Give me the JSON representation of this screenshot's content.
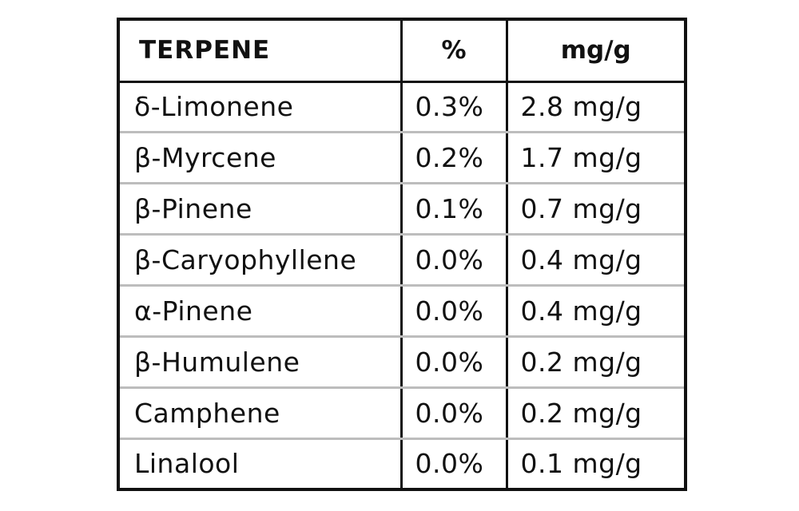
{
  "table": {
    "headers": {
      "terpene": "TERPENE",
      "percent": "%",
      "mgg": "mg/g"
    },
    "rows": [
      {
        "name": "δ-Limonene",
        "percent": "0.3%",
        "mgg": "2.8 mg/g"
      },
      {
        "name": "β-Myrcene",
        "percent": "0.2%",
        "mgg": "1.7 mg/g"
      },
      {
        "name": "β-Pinene",
        "percent": "0.1%",
        "mgg": "0.7 mg/g"
      },
      {
        "name": "β-Caryophyllene",
        "percent": "0.0%",
        "mgg": "0.4 mg/g"
      },
      {
        "name": "α-Pinene",
        "percent": "0.0%",
        "mgg": "0.4 mg/g"
      },
      {
        "name": "β-Humulene",
        "percent": "0.0%",
        "mgg": "0.2 mg/g"
      },
      {
        "name": "Camphene",
        "percent": "0.0%",
        "mgg": "0.2 mg/g"
      },
      {
        "name": "Linalool",
        "percent": "0.0%",
        "mgg": "0.1 mg/g"
      }
    ]
  }
}
